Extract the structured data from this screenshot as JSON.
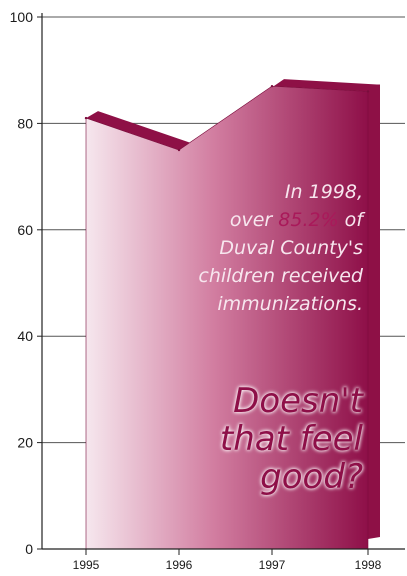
{
  "chart_data": {
    "type": "area",
    "x": [
      "1995",
      "1996",
      "1997",
      "1998"
    ],
    "series": [
      {
        "values": [
          81,
          75,
          87,
          86
        ]
      }
    ],
    "y_ticks": [
      "0",
      "20",
      "40",
      "60",
      "80",
      "100"
    ],
    "ylim": [
      0,
      100
    ],
    "grid": false,
    "colors": {
      "fill_dark": "#8e0f48",
      "fill_mid": "#c0507f",
      "fill_light": "#f6e7ee",
      "top_band": "#8e1046",
      "highlight": "#a9195a"
    }
  },
  "annotation": {
    "line1": "In 1998,",
    "line2_pre": "over",
    "line2_value": "85.2%",
    "line2_post": "of",
    "line3": "Duval County's",
    "line4": "children received",
    "line5": "immunizations."
  },
  "kicker": {
    "line1": "Doesn't",
    "line2": "that feel",
    "line3": "good?"
  }
}
